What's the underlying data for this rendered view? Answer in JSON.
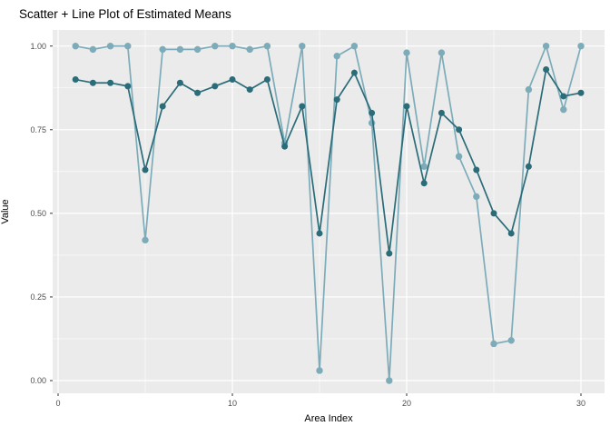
{
  "window": {
    "background": "#ffffff",
    "panel_background": "#EBEBEB",
    "gridline_color": "#FFFFFF",
    "tick_label_color": "#4D4D4D",
    "tick_mark_color": "#333333"
  },
  "chart_data": {
    "type": "line",
    "subtype": "scatter+line",
    "title": "Scatter + Line Plot of Estimated Means",
    "xlabel": "Area Index",
    "ylabel": "Value",
    "legend_position": "none",
    "grid": "on",
    "xlim": [
      0,
      30
    ],
    "ylim": [
      0.0,
      1.0
    ],
    "x_ticks": {
      "major": [
        0,
        10,
        20,
        30
      ],
      "minor": [
        5,
        15,
        25
      ],
      "labels": [
        "0",
        "10",
        "20",
        "30"
      ]
    },
    "y_ticks": {
      "major": [
        0.0,
        0.25,
        0.5,
        0.75,
        1.0
      ],
      "minor": [
        0.125,
        0.375,
        0.625,
        0.875
      ],
      "labels": [
        "0.00",
        "0.25",
        "0.50",
        "0.75",
        "1.00"
      ]
    },
    "x": [
      1,
      2,
      3,
      4,
      5,
      6,
      7,
      8,
      9,
      10,
      11,
      12,
      13,
      14,
      15,
      16,
      17,
      18,
      19,
      20,
      21,
      22,
      23,
      24,
      25,
      26,
      27,
      28,
      29,
      30
    ],
    "series": [
      {
        "name": "light_teal_series",
        "color": "#7CACB9",
        "values": [
          1.0,
          0.99,
          1.0,
          1.0,
          0.42,
          0.99,
          0.99,
          0.99,
          1.0,
          1.0,
          0.99,
          1.0,
          0.71,
          1.0,
          0.03,
          0.97,
          1.0,
          0.77,
          0.0,
          0.98,
          0.64,
          0.98,
          0.67,
          0.55,
          0.11,
          0.12,
          0.87,
          1.0,
          0.81,
          1.0
        ]
      },
      {
        "name": "dark_teal_series",
        "color": "#2B6C79",
        "values": [
          0.9,
          0.89,
          0.89,
          0.88,
          0.63,
          0.82,
          0.89,
          0.86,
          0.88,
          0.9,
          0.87,
          0.9,
          0.7,
          0.82,
          0.44,
          0.84,
          0.92,
          0.8,
          0.38,
          0.82,
          0.59,
          0.8,
          0.75,
          0.63,
          0.5,
          0.44,
          0.64,
          0.93,
          0.85,
          0.86
        ]
      }
    ]
  }
}
